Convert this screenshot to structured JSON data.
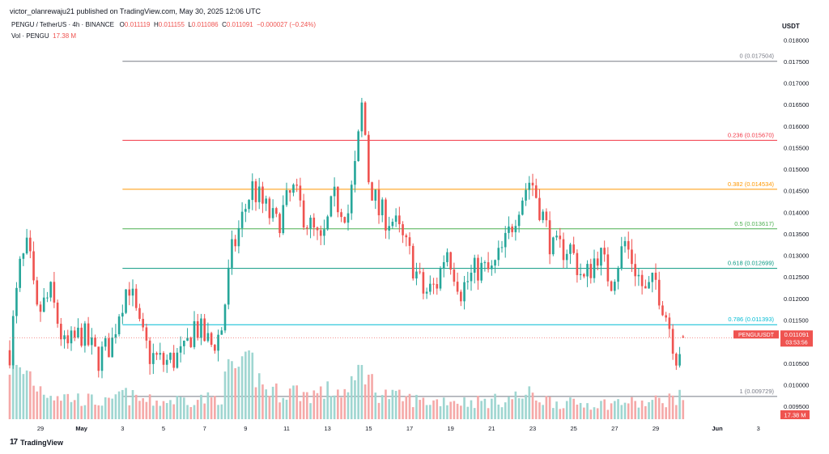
{
  "header": {
    "published": "victor_olanrewaju21 published on TradingView.com, May 30, 2025 12:06 UTC",
    "symbol": "PENGU / TetherUS · 4h · BINANCE",
    "ohlc": {
      "o_label": "O",
      "o": "0.011119",
      "h_label": "H",
      "h": "0.011155",
      "l_label": "L",
      "l": "0.011086",
      "c_label": "C",
      "c": "0.011091",
      "change": "−0.000027 (−0.24%)"
    },
    "vol_label": "Vol · PENGU",
    "vol_value": "17.38 M",
    "currency": "USDT"
  },
  "footer": {
    "brand": "TradingView",
    "logo_icon": "tradingview-logo-icon"
  },
  "chart_data": {
    "type": "candlestick",
    "interval": "4h",
    "y_axis": {
      "ticks": [
        "0.018000",
        "0.017500",
        "0.017000",
        "0.016500",
        "0.016000",
        "0.015500",
        "0.015000",
        "0.014500",
        "0.014000",
        "0.013500",
        "0.013000",
        "0.012500",
        "0.012000",
        "0.011500",
        "0.011000",
        "0.010500",
        "0.010000",
        "0.009500"
      ],
      "range": [
        0.0092,
        0.0181
      ]
    },
    "x_axis": {
      "ticks": [
        {
          "label": "29",
          "day": -2
        },
        {
          "label": "May",
          "day": 0
        },
        {
          "label": "3",
          "day": 2
        },
        {
          "label": "5",
          "day": 4
        },
        {
          "label": "7",
          "day": 6
        },
        {
          "label": "9",
          "day": 8
        },
        {
          "label": "11",
          "day": 10
        },
        {
          "label": "13",
          "day": 12
        },
        {
          "label": "15",
          "day": 14
        },
        {
          "label": "17",
          "day": 16
        },
        {
          "label": "19",
          "day": 18
        },
        {
          "label": "21",
          "day": 20
        },
        {
          "label": "23",
          "day": 22
        },
        {
          "label": "25",
          "day": 24
        },
        {
          "label": "27",
          "day": 26
        },
        {
          "label": "29",
          "day": 28
        },
        {
          "label": "Jun",
          "day": 31
        },
        {
          "label": "3",
          "day": 33
        }
      ],
      "range_days": [
        -3.5,
        34.0
      ]
    },
    "fib_levels": [
      {
        "label": "0 (0.017504)",
        "value": 0.017504,
        "color": "#787b86"
      },
      {
        "label": "0.236 (0.015670)",
        "value": 0.01567,
        "color": "#f23645"
      },
      {
        "label": "0.382 (0.014534)",
        "value": 0.014534,
        "color": "#ff9800"
      },
      {
        "label": "0.5 (0.013617)",
        "value": 0.013617,
        "color": "#4caf50"
      },
      {
        "label": "0.618 (0.012699)",
        "value": 0.012699,
        "color": "#089981"
      },
      {
        "label": "0.786 (0.011393)",
        "value": 0.011393,
        "color": "#00bcd4"
      },
      {
        "label": "1 (0.009729)",
        "value": 0.009729,
        "color": "#787b86"
      }
    ],
    "fib_start_day": 2.0,
    "price_label": {
      "symbol": "PENGUUSDT",
      "price": "0.011091",
      "countdown": "03:53:56",
      "value": 0.011091
    },
    "volume_label": "17.38 M",
    "colors": {
      "up": "#26a69a",
      "down": "#ef5350",
      "up_volume": "#9fd6d1",
      "down_volume": "#f5a9a8"
    },
    "anchors": [
      {
        "day": -3.5,
        "price": 0.0108,
        "vol": 2.6
      },
      {
        "day": -3.0,
        "price": 0.0127,
        "vol": 2.0
      },
      {
        "day": -2.6,
        "price": 0.0132,
        "vol": 2.2
      },
      {
        "day": -2.2,
        "price": 0.0116,
        "vol": 1.5
      },
      {
        "day": -1.5,
        "price": 0.0121,
        "vol": 1.2
      },
      {
        "day": -0.8,
        "price": 0.0108,
        "vol": 1.0
      },
      {
        "day": 0.0,
        "price": 0.0112,
        "vol": 0.9
      },
      {
        "day": 0.8,
        "price": 0.0106,
        "vol": 0.8
      },
      {
        "day": 1.5,
        "price": 0.011,
        "vol": 0.7
      },
      {
        "day": 1.8,
        "price": 0.0117,
        "vol": 1.2
      },
      {
        "day": 2.3,
        "price": 0.0124,
        "vol": 1.0
      },
      {
        "day": 2.8,
        "price": 0.0113,
        "vol": 0.9
      },
      {
        "day": 3.3,
        "price": 0.0107,
        "vol": 0.8
      },
      {
        "day": 4.0,
        "price": 0.0105,
        "vol": 0.8
      },
      {
        "day": 5.0,
        "price": 0.0107,
        "vol": 0.9
      },
      {
        "day": 5.5,
        "price": 0.0114,
        "vol": 0.9
      },
      {
        "day": 6.3,
        "price": 0.0109,
        "vol": 0.9
      },
      {
        "day": 6.8,
        "price": 0.0112,
        "vol": 1.0
      },
      {
        "day": 7.3,
        "price": 0.013,
        "vol": 2.5
      },
      {
        "day": 7.8,
        "price": 0.0138,
        "vol": 2.0
      },
      {
        "day": 8.3,
        "price": 0.0146,
        "vol": 2.5
      },
      {
        "day": 8.8,
        "price": 0.0142,
        "vol": 1.5
      },
      {
        "day": 9.5,
        "price": 0.0137,
        "vol": 1.2
      },
      {
        "day": 10.3,
        "price": 0.0145,
        "vol": 1.3
      },
      {
        "day": 11.0,
        "price": 0.0138,
        "vol": 1.1
      },
      {
        "day": 11.7,
        "price": 0.0132,
        "vol": 1.2
      },
      {
        "day": 12.3,
        "price": 0.0143,
        "vol": 1.3
      },
      {
        "day": 13.0,
        "price": 0.014,
        "vol": 1.2
      },
      {
        "day": 13.4,
        "price": 0.0152,
        "vol": 1.7
      },
      {
        "day": 13.7,
        "price": 0.0166,
        "vol": 2.8
      },
      {
        "day": 14.0,
        "price": 0.0148,
        "vol": 1.8
      },
      {
        "day": 14.5,
        "price": 0.014,
        "vol": 1.2
      },
      {
        "day": 15.2,
        "price": 0.0138,
        "vol": 1.0
      },
      {
        "day": 16.0,
        "price": 0.013,
        "vol": 0.9
      },
      {
        "day": 16.7,
        "price": 0.0121,
        "vol": 0.8
      },
      {
        "day": 17.3,
        "price": 0.0123,
        "vol": 0.8
      },
      {
        "day": 17.8,
        "price": 0.0132,
        "vol": 0.9
      },
      {
        "day": 18.5,
        "price": 0.0122,
        "vol": 0.8
      },
      {
        "day": 19.3,
        "price": 0.0127,
        "vol": 0.8
      },
      {
        "day": 20.0,
        "price": 0.0126,
        "vol": 0.8
      },
      {
        "day": 20.7,
        "price": 0.0133,
        "vol": 0.9
      },
      {
        "day": 21.3,
        "price": 0.0142,
        "vol": 1.0
      },
      {
        "day": 21.9,
        "price": 0.0148,
        "vol": 1.1
      },
      {
        "day": 22.5,
        "price": 0.0139,
        "vol": 0.9
      },
      {
        "day": 23.0,
        "price": 0.0131,
        "vol": 0.8
      },
      {
        "day": 23.8,
        "price": 0.0132,
        "vol": 0.7
      },
      {
        "day": 24.5,
        "price": 0.0124,
        "vol": 0.7
      },
      {
        "day": 25.2,
        "price": 0.0131,
        "vol": 0.7
      },
      {
        "day": 25.8,
        "price": 0.0124,
        "vol": 0.7
      },
      {
        "day": 26.5,
        "price": 0.0133,
        "vol": 0.8
      },
      {
        "day": 27.0,
        "price": 0.0127,
        "vol": 0.7
      },
      {
        "day": 27.5,
        "price": 0.0121,
        "vol": 0.7
      },
      {
        "day": 28.0,
        "price": 0.0124,
        "vol": 0.8
      },
      {
        "day": 28.6,
        "price": 0.0115,
        "vol": 0.9
      },
      {
        "day": 29.0,
        "price": 0.0107,
        "vol": 1.0
      },
      {
        "day": 29.4,
        "price": 0.0111,
        "vol": 0.9
      }
    ]
  }
}
